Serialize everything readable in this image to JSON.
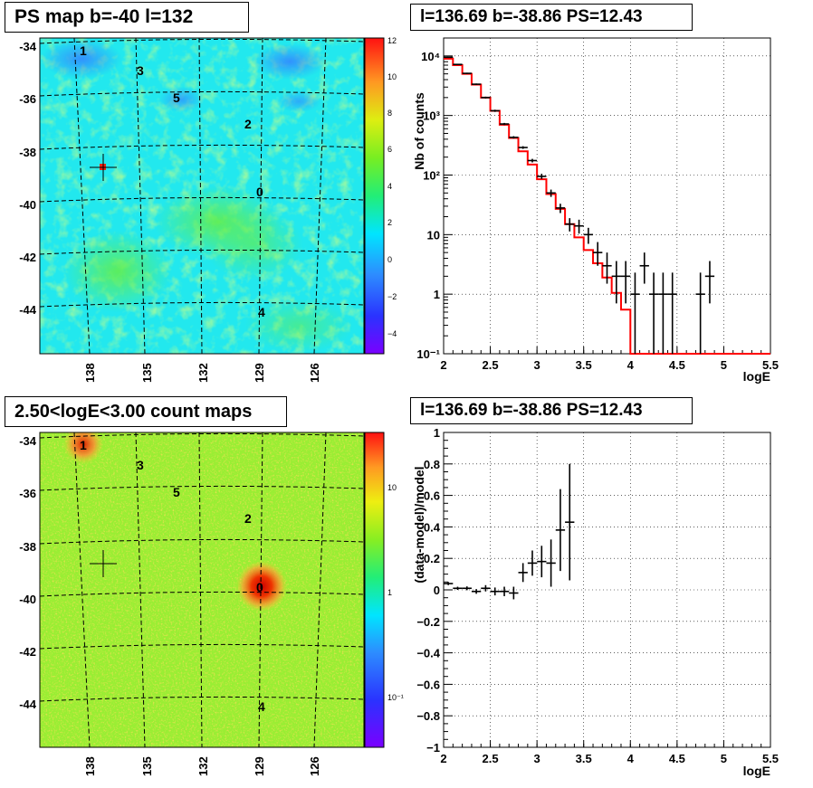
{
  "titles": {
    "ps_map": "PS map b=-40 l=132",
    "spectrum": "l=136.69 b=-38.86 PS=12.43",
    "count_map": "2.50<logE<3.00 count maps",
    "residual": "l=136.69 b=-38.86 PS=12.43"
  },
  "maps": {
    "lat_ticks": [
      "-34",
      "-36",
      "-38",
      "-40",
      "-42",
      "-44"
    ],
    "lon_ticks": [
      "138",
      "135",
      "132",
      "129",
      "126"
    ],
    "sources": [
      {
        "label": "1"
      },
      {
        "label": "3"
      },
      {
        "label": "5"
      },
      {
        "label": "2"
      },
      {
        "label": "0"
      },
      {
        "label": "4"
      }
    ],
    "ps_colorbar_ticks": [
      "12",
      "10",
      "8",
      "6",
      "4",
      "2",
      "0",
      "−2",
      "−4"
    ],
    "count_colorbar_ticks": [
      "10",
      "1",
      "10⁻¹"
    ]
  },
  "chart_data": [
    {
      "type": "line",
      "panel": "spectrum",
      "xlabel": "logE",
      "ylabel": "Nb of counts",
      "xlim": [
        2,
        5.5
      ],
      "ylim": [
        0.1,
        20000
      ],
      "yscale": "log",
      "grid": true,
      "x_ticks": [
        "2",
        "2.5",
        "3",
        "3.5",
        "4",
        "4.5",
        "5",
        "5.5"
      ],
      "y_ticks": [
        "10⁻¹",
        "1",
        "10",
        "10²",
        "10³",
        "10⁴"
      ],
      "model_steps": {
        "name": "model",
        "color": "#ff0000",
        "edges": [
          2.0,
          2.1,
          2.2,
          2.3,
          2.4,
          2.5,
          2.6,
          2.7,
          2.8,
          2.9,
          3.0,
          3.1,
          3.2,
          3.3,
          3.4,
          3.5,
          3.6,
          3.7,
          3.8,
          3.9,
          4.0,
          4.1,
          4.2,
          4.3,
          4.4,
          4.5,
          4.6,
          4.7,
          4.8,
          4.9,
          5.0,
          5.1,
          5.2,
          5.3,
          5.4,
          5.5
        ],
        "values": [
          9000,
          7000,
          5000,
          3300,
          2000,
          1200,
          700,
          420,
          250,
          150,
          85,
          48,
          27,
          15,
          9,
          5.5,
          3.3,
          1.9,
          1.05,
          0.55,
          0.1,
          0.1,
          0.1,
          0.1,
          0.1,
          0.1,
          0.1,
          0.1,
          0.1,
          0.1,
          0.1,
          0.1,
          0.1,
          0.1,
          0.1
        ]
      },
      "data_points": {
        "name": "data",
        "color": "#000000",
        "points": [
          {
            "x": 2.05,
            "y": 9500,
            "lo": 9300,
            "hi": 9700
          },
          {
            "x": 2.15,
            "y": 7200,
            "lo": 7050,
            "hi": 7350
          },
          {
            "x": 2.25,
            "y": 5100,
            "lo": 4980,
            "hi": 5220
          },
          {
            "x": 2.35,
            "y": 3350,
            "lo": 3260,
            "hi": 3440
          },
          {
            "x": 2.45,
            "y": 2000,
            "lo": 1930,
            "hi": 2070
          },
          {
            "x": 2.55,
            "y": 1200,
            "lo": 1150,
            "hi": 1250
          },
          {
            "x": 2.65,
            "y": 720,
            "lo": 690,
            "hi": 750
          },
          {
            "x": 2.75,
            "y": 430,
            "lo": 410,
            "hi": 450
          },
          {
            "x": 2.85,
            "y": 290,
            "lo": 275,
            "hi": 305
          },
          {
            "x": 2.95,
            "y": 175,
            "lo": 163,
            "hi": 187
          },
          {
            "x": 3.05,
            "y": 95,
            "lo": 86,
            "hi": 105
          },
          {
            "x": 3.15,
            "y": 50,
            "lo": 43,
            "hi": 57
          },
          {
            "x": 3.25,
            "y": 28,
            "lo": 23,
            "hi": 33
          },
          {
            "x": 3.35,
            "y": 15,
            "lo": 11.3,
            "hi": 18.9
          },
          {
            "x": 3.45,
            "y": 14,
            "lo": 10.4,
            "hi": 17.8
          },
          {
            "x": 3.55,
            "y": 10,
            "lo": 7,
            "hi": 13
          },
          {
            "x": 3.65,
            "y": 5,
            "lo": 3,
            "hi": 7.5
          },
          {
            "x": 3.75,
            "y": 3,
            "lo": 1.5,
            "hi": 5
          },
          {
            "x": 3.85,
            "y": 2,
            "lo": 0.7,
            "hi": 3.6
          },
          {
            "x": 3.95,
            "y": 2,
            "lo": 0.7,
            "hi": 3.6
          },
          {
            "x": 4.05,
            "y": 1,
            "lo": 0.1,
            "hi": 2.3
          },
          {
            "x": 4.15,
            "y": 3,
            "lo": 1.5,
            "hi": 5
          },
          {
            "x": 4.25,
            "y": 1,
            "lo": 0.1,
            "hi": 2.3
          },
          {
            "x": 4.35,
            "y": 1,
            "lo": 0.1,
            "hi": 2.3
          },
          {
            "x": 4.45,
            "y": 1,
            "lo": 0.1,
            "hi": 2.3
          },
          {
            "x": 4.75,
            "y": 1,
            "lo": 0.1,
            "hi": 2.3
          },
          {
            "x": 4.85,
            "y": 2,
            "lo": 0.7,
            "hi": 3.6
          }
        ]
      }
    },
    {
      "type": "scatter",
      "panel": "residual",
      "xlabel": "logE",
      "ylabel": "(data-model)/model",
      "xlim": [
        2,
        5.5
      ],
      "ylim": [
        -1,
        1
      ],
      "grid": true,
      "x_ticks": [
        "2",
        "2.5",
        "3",
        "3.5",
        "4",
        "4.5",
        "5",
        "5.5"
      ],
      "y_ticks": [
        "−1",
        "−0.8",
        "−0.6",
        "−0.4",
        "−0.2",
        "0",
        "0.2",
        "0.4",
        "0.6",
        "0.8",
        "1"
      ],
      "points": [
        {
          "x": 2.05,
          "y": 0.04,
          "err": 0.01
        },
        {
          "x": 2.15,
          "y": 0.01,
          "err": 0.01
        },
        {
          "x": 2.25,
          "y": 0.01,
          "err": 0.012
        },
        {
          "x": 2.35,
          "y": -0.01,
          "err": 0.015
        },
        {
          "x": 2.45,
          "y": 0.01,
          "err": 0.02
        },
        {
          "x": 2.55,
          "y": -0.01,
          "err": 0.025
        },
        {
          "x": 2.65,
          "y": -0.01,
          "err": 0.03
        },
        {
          "x": 2.75,
          "y": -0.02,
          "err": 0.04
        },
        {
          "x": 2.85,
          "y": 0.11,
          "err": 0.06
        },
        {
          "x": 2.95,
          "y": 0.17,
          "err": 0.08
        },
        {
          "x": 3.05,
          "y": 0.18,
          "err": 0.1
        },
        {
          "x": 3.15,
          "y": 0.17,
          "err": 0.15
        },
        {
          "x": 3.25,
          "y": 0.38,
          "err": 0.26
        },
        {
          "x": 3.35,
          "y": 0.43,
          "err": 0.37
        }
      ]
    }
  ]
}
